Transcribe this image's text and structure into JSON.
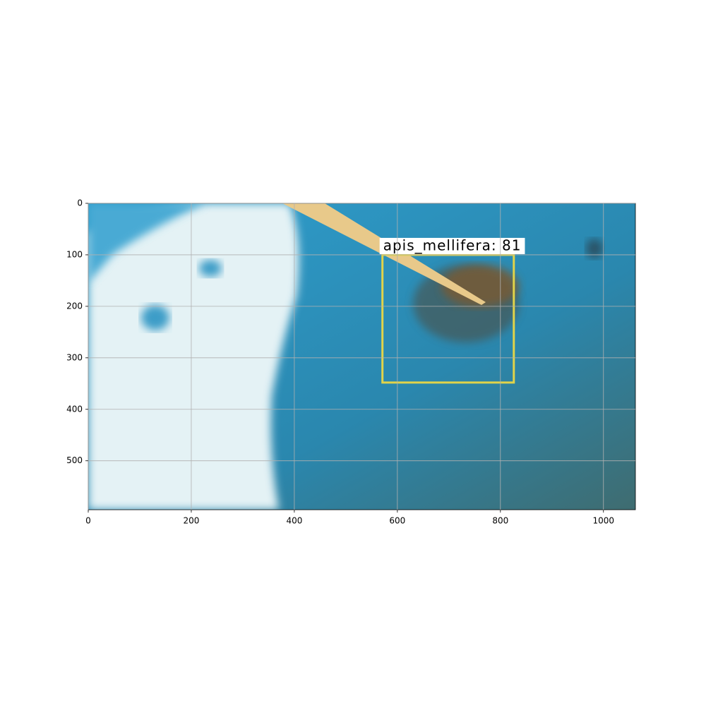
{
  "chart_data": {
    "type": "image",
    "xlim": [
      0,
      1062
    ],
    "ylim": [
      595,
      0
    ],
    "xticks": [
      0,
      200,
      400,
      600,
      800,
      1000
    ],
    "yticks": [
      0,
      100,
      200,
      300,
      400,
      500
    ],
    "grid": true,
    "boxes": [
      {
        "label": "apis_mellifera: 81",
        "x0": 571,
        "y0": 100,
        "x1": 826,
        "y1": 348,
        "color": "#e0d34a"
      }
    ]
  }
}
